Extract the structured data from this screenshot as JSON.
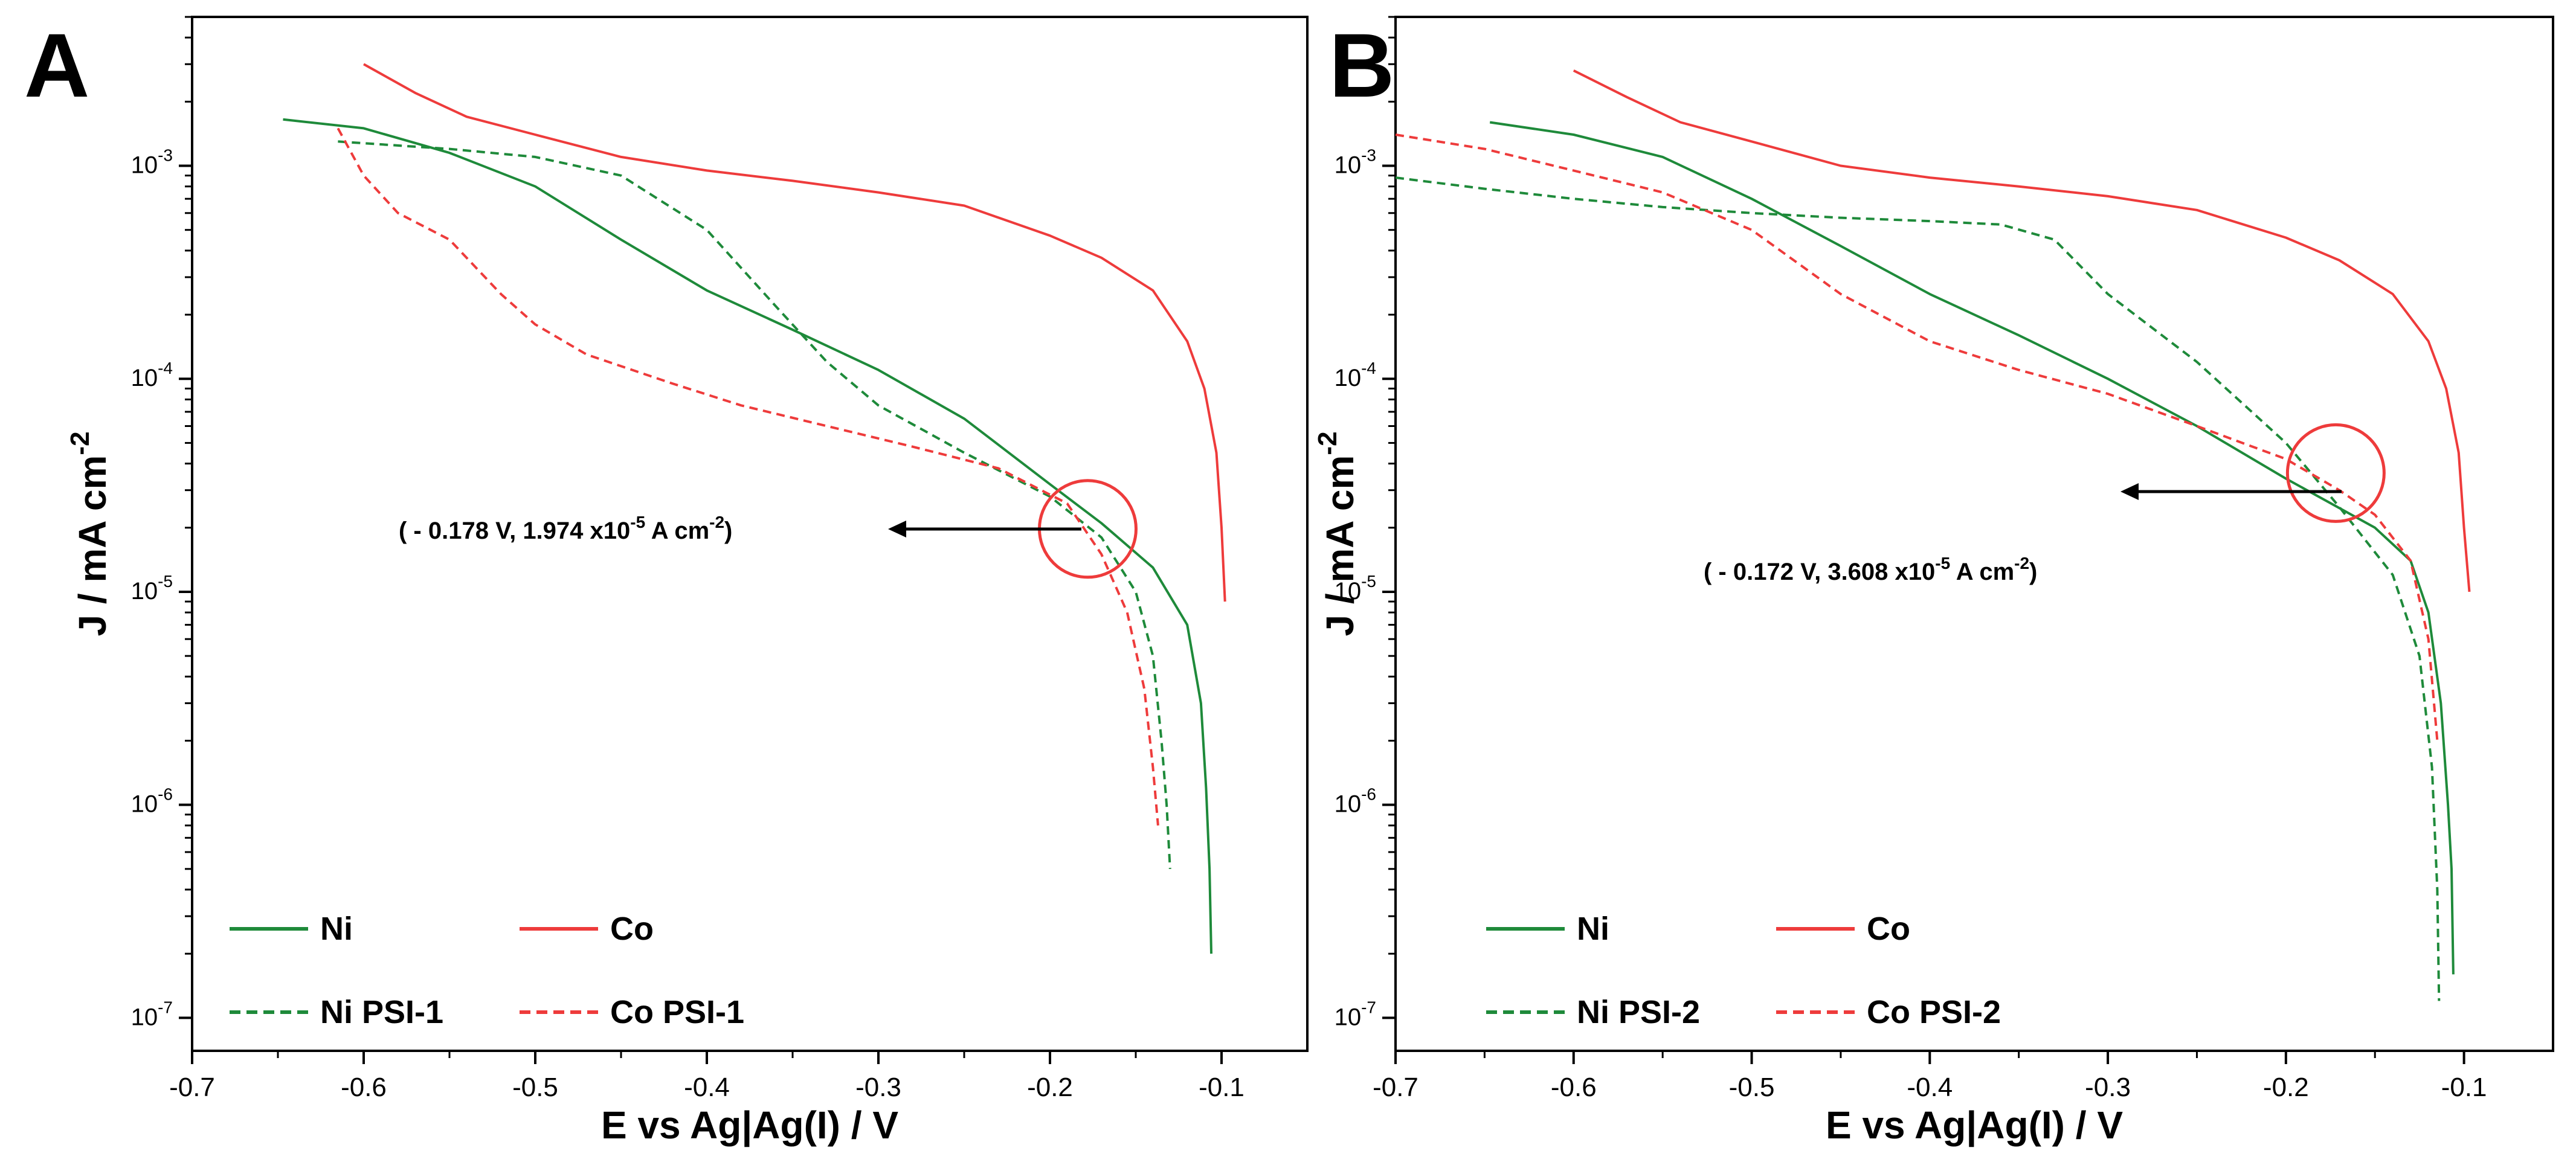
{
  "figure": {
    "panels": [
      {
        "letter": "A"
      },
      {
        "letter": "B"
      }
    ]
  },
  "colors": {
    "ni": "#1e8a3a",
    "co": "#ee3b3b",
    "axis": "#000000",
    "text": "#000000"
  },
  "chart_data": [
    {
      "type": "line",
      "panel": "A",
      "xlabel": "E vs Ag|Ag(I) / V",
      "ylabel": "J / mA cm-2",
      "xscale": "linear",
      "yscale": "log",
      "xlim": [
        -0.7,
        -0.05
      ],
      "ylim": [
        7e-08,
        0.005
      ],
      "xticks": [
        -0.7,
        -0.6,
        -0.5,
        -0.4,
        -0.3,
        -0.2,
        -0.1
      ],
      "xtick_labels": [
        "-0.7",
        "-0.6",
        "-0.5",
        "-0.4",
        "-0.3",
        "-0.2",
        "-0.1"
      ],
      "yticks": [
        1e-07,
        1e-06,
        1e-05,
        0.0001,
        0.001
      ],
      "ytick_labels": [
        "10-7",
        "10-6",
        "10-5",
        "10-4",
        "10-3"
      ],
      "legend_position": "bottom-left",
      "series": [
        {
          "name": "Ni",
          "color": "#1e8a3a",
          "dash": "solid",
          "points": [
            [
              -0.647,
              0.00165
            ],
            [
              -0.6,
              0.0015
            ],
            [
              -0.55,
              0.00115
            ],
            [
              -0.5,
              0.0008
            ],
            [
              -0.45,
              0.00045
            ],
            [
              -0.4,
              0.00026
            ],
            [
              -0.35,
              0.00017
            ],
            [
              -0.3,
              0.00011
            ],
            [
              -0.25,
              6.5e-05
            ],
            [
              -0.2,
              3.2e-05
            ],
            [
              -0.17,
              2.1e-05
            ],
            [
              -0.14,
              1.3e-05
            ],
            [
              -0.12,
              7e-06
            ],
            [
              -0.112,
              3e-06
            ],
            [
              -0.109,
              1.2e-06
            ],
            [
              -0.107,
              5e-07
            ],
            [
              -0.106,
              2e-07
            ]
          ]
        },
        {
          "name": "Co",
          "color": "#ee3b3b",
          "dash": "solid",
          "points": [
            [
              -0.6,
              0.003
            ],
            [
              -0.57,
              0.0022
            ],
            [
              -0.54,
              0.0017
            ],
            [
              -0.5,
              0.0014
            ],
            [
              -0.45,
              0.0011
            ],
            [
              -0.4,
              0.00095
            ],
            [
              -0.35,
              0.00085
            ],
            [
              -0.3,
              0.00075
            ],
            [
              -0.25,
              0.00065
            ],
            [
              -0.2,
              0.00047
            ],
            [
              -0.17,
              0.00037
            ],
            [
              -0.14,
              0.00026
            ],
            [
              -0.12,
              0.00015
            ],
            [
              -0.11,
              9e-05
            ],
            [
              -0.103,
              4.5e-05
            ],
            [
              -0.1,
              2e-05
            ],
            [
              -0.098,
              9e-06
            ]
          ]
        },
        {
          "name": "Ni PSI-1",
          "color": "#1e8a3a",
          "dash": "dashed",
          "points": [
            [
              -0.615,
              0.0013
            ],
            [
              -0.55,
              0.0012
            ],
            [
              -0.5,
              0.0011
            ],
            [
              -0.45,
              0.0009
            ],
            [
              -0.4,
              0.0005
            ],
            [
              -0.36,
              0.00022
            ],
            [
              -0.33,
              0.00012
            ],
            [
              -0.3,
              7.5e-05
            ],
            [
              -0.25,
              4.5e-05
            ],
            [
              -0.2,
              2.8e-05
            ],
            [
              -0.17,
              1.8e-05
            ],
            [
              -0.15,
              1e-05
            ],
            [
              -0.14,
              5e-06
            ],
            [
              -0.135,
              2e-06
            ],
            [
              -0.132,
              1e-06
            ],
            [
              -0.13,
              5e-07
            ]
          ]
        },
        {
          "name": "Co PSI-1",
          "color": "#ee3b3b",
          "dash": "dashed",
          "points": [
            [
              -0.615,
              0.0015
            ],
            [
              -0.6,
              0.0009
            ],
            [
              -0.58,
              0.0006
            ],
            [
              -0.55,
              0.00045
            ],
            [
              -0.52,
              0.00025
            ],
            [
              -0.5,
              0.00018
            ],
            [
              -0.47,
              0.00013
            ],
            [
              -0.42,
              9.5e-05
            ],
            [
              -0.38,
              7.5e-05
            ],
            [
              -0.33,
              6e-05
            ],
            [
              -0.28,
              4.8e-05
            ],
            [
              -0.23,
              3.8e-05
            ],
            [
              -0.19,
              2.6e-05
            ],
            [
              -0.17,
              1.5e-05
            ],
            [
              -0.155,
              8e-06
            ],
            [
              -0.145,
              3.5e-06
            ],
            [
              -0.14,
              1.5e-06
            ],
            [
              -0.137,
              8e-07
            ]
          ]
        }
      ],
      "annotation": {
        "text_pre": "( - 0.178 V, 1.974 x10",
        "text_sup": "-5",
        "text_post": " A cm",
        "text_sup2": "-2",
        "text_end": ")",
        "point": [
          -0.178,
          1.974e-05
        ]
      }
    },
    {
      "type": "line",
      "panel": "B",
      "xlabel": "E vs Ag|Ag(I) / V",
      "ylabel": "J / mA cm-2",
      "xscale": "linear",
      "yscale": "log",
      "xlim": [
        -0.7,
        -0.05
      ],
      "ylim": [
        7e-08,
        0.005
      ],
      "xticks": [
        -0.7,
        -0.6,
        -0.5,
        -0.4,
        -0.3,
        -0.2,
        -0.1
      ],
      "xtick_labels": [
        "-0.7",
        "-0.6",
        "-0.5",
        "-0.4",
        "-0.3",
        "-0.2",
        "-0.1"
      ],
      "yticks": [
        1e-07,
        1e-06,
        1e-05,
        0.0001,
        0.001
      ],
      "ytick_labels": [
        "10-7",
        "10-6",
        "10-5",
        "10-4",
        "10-3"
      ],
      "legend_position": "bottom-left",
      "series": [
        {
          "name": "Ni",
          "color": "#1e8a3a",
          "dash": "solid",
          "points": [
            [
              -0.647,
              0.0016
            ],
            [
              -0.6,
              0.0014
            ],
            [
              -0.55,
              0.0011
            ],
            [
              -0.5,
              0.0007
            ],
            [
              -0.45,
              0.00042
            ],
            [
              -0.4,
              0.00025
            ],
            [
              -0.35,
              0.00016
            ],
            [
              -0.3,
              0.0001
            ],
            [
              -0.25,
              6e-05
            ],
            [
              -0.2,
              3.4e-05
            ],
            [
              -0.15,
              2e-05
            ],
            [
              -0.13,
              1.4e-05
            ],
            [
              -0.12,
              8e-06
            ],
            [
              -0.113,
              3e-06
            ],
            [
              -0.109,
              1e-06
            ],
            [
              -0.107,
              5e-07
            ],
            [
              -0.106,
              1.6e-07
            ]
          ]
        },
        {
          "name": "Co",
          "color": "#ee3b3b",
          "dash": "solid",
          "points": [
            [
              -0.6,
              0.0028
            ],
            [
              -0.57,
              0.0021
            ],
            [
              -0.54,
              0.0016
            ],
            [
              -0.5,
              0.0013
            ],
            [
              -0.45,
              0.001
            ],
            [
              -0.4,
              0.00088
            ],
            [
              -0.35,
              0.0008
            ],
            [
              -0.3,
              0.00072
            ],
            [
              -0.25,
              0.00062
            ],
            [
              -0.2,
              0.00046
            ],
            [
              -0.17,
              0.00036
            ],
            [
              -0.14,
              0.00025
            ],
            [
              -0.12,
              0.00015
            ],
            [
              -0.11,
              9e-05
            ],
            [
              -0.103,
              4.5e-05
            ],
            [
              -0.1,
              2e-05
            ],
            [
              -0.097,
              1e-05
            ]
          ]
        },
        {
          "name": "Ni PSI-2",
          "color": "#1e8a3a",
          "dash": "dashed",
          "points": [
            [
              -0.7,
              0.00088
            ],
            [
              -0.65,
              0.00078
            ],
            [
              -0.6,
              0.0007
            ],
            [
              -0.55,
              0.00064
            ],
            [
              -0.5,
              0.0006
            ],
            [
              -0.45,
              0.00057
            ],
            [
              -0.4,
              0.00055
            ],
            [
              -0.36,
              0.00053
            ],
            [
              -0.33,
              0.00045
            ],
            [
              -0.3,
              0.00025
            ],
            [
              -0.25,
              0.00012
            ],
            [
              -0.2,
              5e-05
            ],
            [
              -0.17,
              2.5e-05
            ],
            [
              -0.14,
              1.2e-05
            ],
            [
              -0.125,
              5e-06
            ],
            [
              -0.118,
              1.5e-06
            ],
            [
              -0.115,
              4e-07
            ],
            [
              -0.114,
              1.2e-07
            ]
          ]
        },
        {
          "name": "Co PSI-2",
          "color": "#ee3b3b",
          "dash": "dashed",
          "points": [
            [
              -0.7,
              0.0014
            ],
            [
              -0.65,
              0.0012
            ],
            [
              -0.6,
              0.00095
            ],
            [
              -0.55,
              0.00075
            ],
            [
              -0.5,
              0.0005
            ],
            [
              -0.45,
              0.00025
            ],
            [
              -0.4,
              0.00015
            ],
            [
              -0.35,
              0.00011
            ],
            [
              -0.3,
              8.5e-05
            ],
            [
              -0.25,
              6e-05
            ],
            [
              -0.2,
              4.2e-05
            ],
            [
              -0.17,
              3e-05
            ],
            [
              -0.15,
              2.3e-05
            ],
            [
              -0.13,
              1.4e-05
            ],
            [
              -0.12,
              6e-06
            ],
            [
              -0.115,
              2e-06
            ]
          ]
        }
      ],
      "annotation": {
        "text_pre": "( - 0.172 V, 3.608 x10",
        "text_sup": "-5",
        "text_post": " A cm",
        "text_sup2": "-2",
        "text_end": ")",
        "point": [
          -0.172,
          3.608e-05
        ]
      }
    }
  ]
}
